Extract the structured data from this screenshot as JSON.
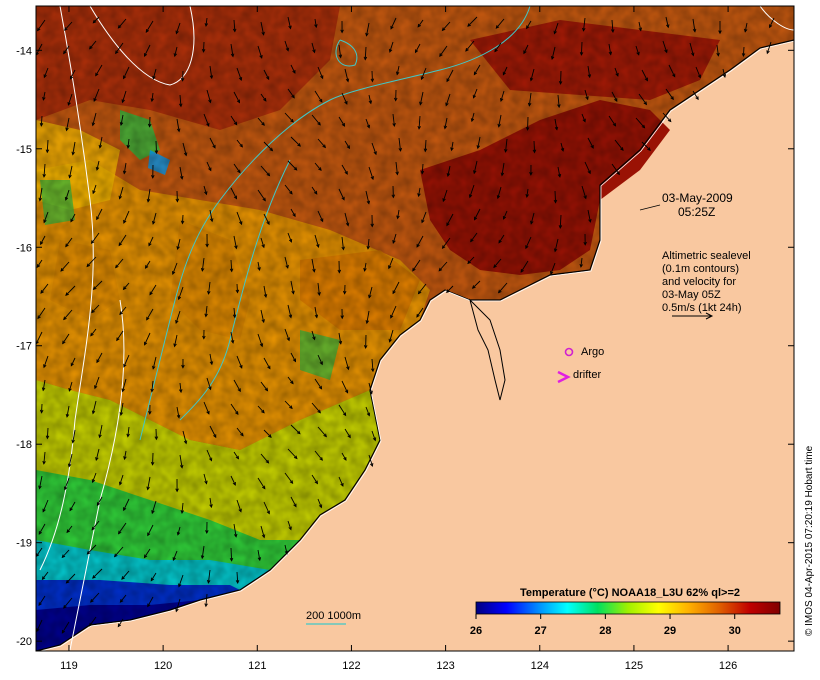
{
  "map": {
    "date_label": "03-May-2009",
    "time_label": "05:25Z",
    "sealevel_note": [
      "Altimetric sealevel",
      "(0.1m contours)",
      "and velocity for",
      "03-May 05Z",
      "0.5m/s (1kt 24h)"
    ],
    "argo_label": "Argo",
    "drifter_label": "drifter",
    "isobath_label": "200  1000m",
    "credit": "© IMOS 04-Apr-2015 07:20:19 Hobart time",
    "lon_ticks": [
      "119",
      "120",
      "121",
      "122",
      "123",
      "124",
      "125",
      "126"
    ],
    "lat_ticks": [
      "-14",
      "-15",
      "-16",
      "-17",
      "-18",
      "-19",
      "-20"
    ],
    "lon_range": [
      118.65,
      126.7
    ],
    "lat_range": [
      -20.1,
      -13.55
    ],
    "colors": {
      "land": "#f9c8a0",
      "argo": "#d020d0",
      "drifter": "#e020e0",
      "isobath": "#40c8c8"
    }
  },
  "colorbar": {
    "title": "Temperature (°C) NOAA18_L3U 62% ql>=2",
    "ticks": [
      "26",
      "27",
      "28",
      "29",
      "30"
    ],
    "range": [
      26,
      30.7
    ],
    "stops": [
      "#000080",
      "#0000ff",
      "#00a0ff",
      "#00ffff",
      "#00e060",
      "#a0f000",
      "#ffff00",
      "#ffb000",
      "#e06000",
      "#c00000",
      "#800000"
    ]
  }
}
